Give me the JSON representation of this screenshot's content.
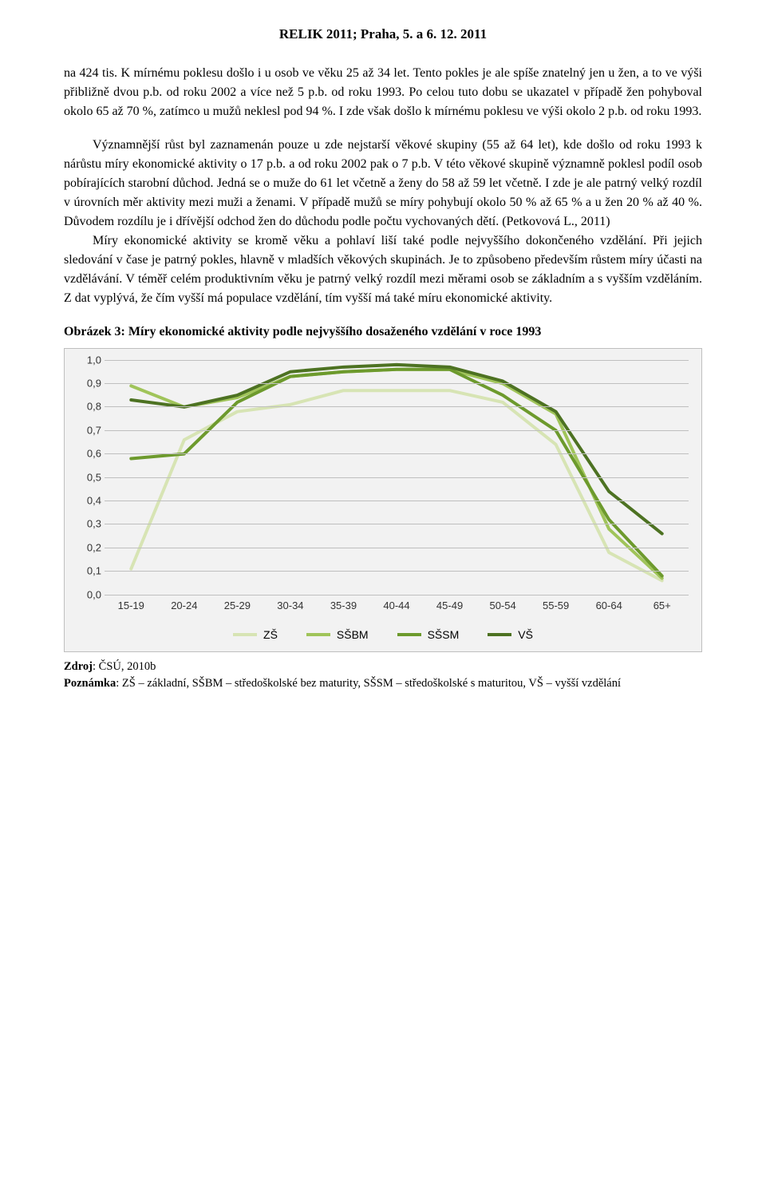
{
  "header": {
    "title": "RELIK 2011; Praha, 5. a 6. 12. 2011"
  },
  "body": {
    "p1": "na 424 tis. K mírnému poklesu došlo i u osob ve věku 25 až 34 let. Tento pokles je ale spíše znatelný jen u žen, a to ve výši přibližně dvou p.b. od roku 2002 a více než 5 p.b. od roku 1993. Po celou tuto dobu se ukazatel v případě žen pohyboval okolo 65 až 70 %, zatímco u mužů neklesl pod 94 %. I zde však došlo k mírnému poklesu ve výši okolo 2 p.b. od roku 1993.",
    "p2": "Významnější růst byl zaznamenán pouze u zde nejstarší věkové skupiny (55 až 64 let), kde došlo od roku 1993 k nárůstu míry ekonomické aktivity o 17 p.b. a od roku 2002 pak o 7 p.b. V této věkové skupině významně poklesl podíl osob pobírajících starobní důchod. Jedná se o muže do 61 let včetně a ženy do 58 až 59 let včetně. I zde je ale patrný velký rozdíl v úrovních měr aktivity mezi muži a ženami. V případě mužů se míry pohybují okolo 50 % až 65 % a u žen 20 % až 40 %. Důvodem rozdílu je i dřívější odchod žen do důchodu podle počtu vychovaných dětí. (Petkovová L., 2011)",
    "p3": "Míry ekonomické aktivity se kromě věku a pohlaví liší také podle nejvyššího dokončeného vzdělání. Při jejich sledování v čase je patrný pokles, hlavně v mladších věkových skupinách. Je to způsobeno především růstem míry účasti na vzdělávání. V téměř celém produktivním věku je patrný velký rozdíl mezi měrami osob se základním a s vyšším vzděláním. Z dat vyplývá, že čím vyšší má populace vzdělání, tím vyšší má také míru ekonomické aktivity."
  },
  "figure": {
    "title": "Obrázek 3: Míry ekonomické aktivity podle nejvyššího dosaženého vzdělání v roce 1993",
    "chart": {
      "type": "line",
      "background_color": "#f2f2f2",
      "grid_color": "#bfbfbf",
      "line_width": 4,
      "categories": [
        "15-19",
        "20-24",
        "25-29",
        "30-34",
        "35-39",
        "40-44",
        "45-49",
        "50-54",
        "55-59",
        "60-64",
        "65+"
      ],
      "ylim": [
        0.0,
        1.0
      ],
      "ytick_step": 0.1,
      "y_tick_labels": [
        "0,0",
        "0,1",
        "0,2",
        "0,3",
        "0,4",
        "0,5",
        "0,6",
        "0,7",
        "0,8",
        "0,9",
        "1,0"
      ],
      "series": [
        {
          "name": "ZŠ",
          "color": "#d7e4b4",
          "values": [
            0.11,
            0.66,
            0.78,
            0.81,
            0.87,
            0.87,
            0.87,
            0.82,
            0.64,
            0.18,
            0.06
          ]
        },
        {
          "name": "SŠBM",
          "color": "#a0c45a",
          "values": [
            0.89,
            0.8,
            0.84,
            0.93,
            0.95,
            0.96,
            0.96,
            0.9,
            0.77,
            0.28,
            0.07
          ]
        },
        {
          "name": "SŠSM",
          "color": "#6d9a2d",
          "values": [
            0.58,
            0.6,
            0.82,
            0.93,
            0.95,
            0.96,
            0.96,
            0.85,
            0.7,
            0.32,
            0.08
          ]
        },
        {
          "name": "VŠ",
          "color": "#4d7222",
          "values": [
            0.83,
            0.8,
            0.85,
            0.95,
            0.97,
            0.98,
            0.97,
            0.91,
            0.78,
            0.44,
            0.26
          ]
        }
      ],
      "legend_labels": [
        "ZŠ",
        "SŠBM",
        "SŠSM",
        "VŠ"
      ],
      "axis_fontsize": 13,
      "axis_font": "Arial"
    }
  },
  "footer": {
    "source_label": "Zdroj",
    "source_text": ": ČSÚ, 2010b",
    "note_label": "Poznámka",
    "note_text": ": ZŠ – základní, SŠBM – středoškolské bez maturity, SŠSM – středoškolské s maturitou,     VŠ – vyšší vzdělání"
  }
}
